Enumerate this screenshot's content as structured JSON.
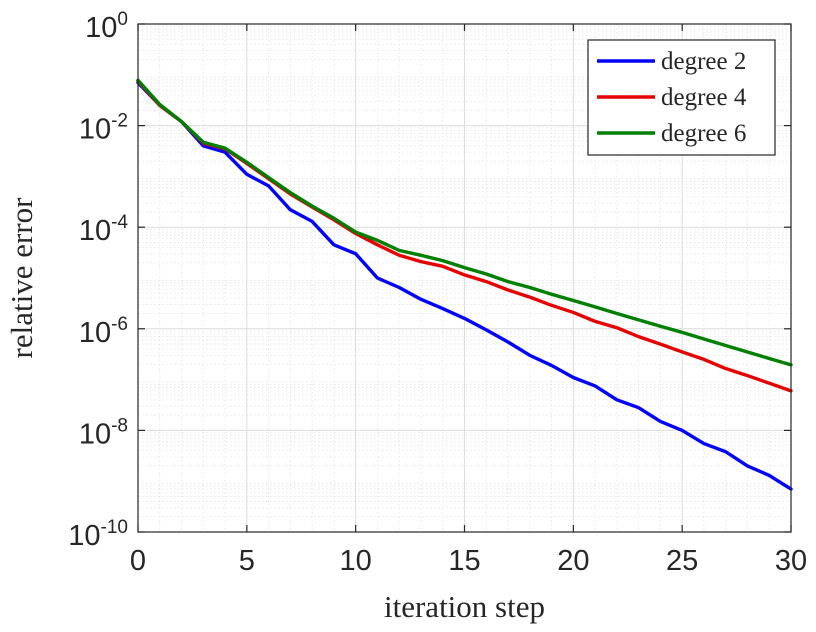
{
  "chart_data": {
    "type": "line",
    "title": "",
    "xlabel": "iteration step",
    "ylabel": "relative error",
    "xscale": "linear",
    "yscale": "log",
    "xlim": [
      0,
      30
    ],
    "ylim": [
      1e-10,
      1
    ],
    "xticks": [
      0,
      5,
      10,
      15,
      20,
      25,
      30
    ],
    "xtick_labels": [
      "0",
      "5",
      "10",
      "15",
      "20",
      "25",
      "30"
    ],
    "yticks": [
      {
        "value": 1e-10,
        "base": "10",
        "exponent": "-10"
      },
      {
        "value": 1e-08,
        "base": "10",
        "exponent": "-8"
      },
      {
        "value": 1e-06,
        "base": "10",
        "exponent": "-6"
      },
      {
        "value": 0.0001,
        "base": "10",
        "exponent": "-4"
      },
      {
        "value": 0.01,
        "base": "10",
        "exponent": "-2"
      },
      {
        "value": 1,
        "base": "10",
        "exponent": "0"
      }
    ],
    "grid": true,
    "legend_position": "top-right",
    "x": [
      0,
      1,
      2,
      3,
      4,
      5,
      6,
      7,
      8,
      9,
      10,
      11,
      12,
      13,
      14,
      15,
      16,
      17,
      18,
      19,
      20,
      21,
      22,
      23,
      24,
      25,
      26,
      27,
      28,
      29,
      30
    ],
    "series": [
      {
        "name": "degree 2",
        "color": "#0000ff",
        "values": [
          0.07,
          0.025,
          0.012,
          0.004,
          0.003,
          0.0011,
          0.00065,
          0.00022,
          0.00013,
          4.5e-05,
          3e-05,
          1e-05,
          6.5e-06,
          3.8e-06,
          2.5e-06,
          1.6e-06,
          9.5e-07,
          5.5e-07,
          3e-07,
          1.9e-07,
          1.1e-07,
          7.5e-08,
          4e-08,
          2.8e-08,
          1.5e-08,
          1e-08,
          5.5e-09,
          3.8e-09,
          2e-09,
          1.3e-09,
          7e-10
        ]
      },
      {
        "name": "degree 4",
        "color": "#e60000",
        "values": [
          0.075,
          0.025,
          0.012,
          0.0045,
          0.0035,
          0.0018,
          0.0009,
          0.00045,
          0.00025,
          0.00014,
          7.5e-05,
          4.5e-05,
          2.8e-05,
          2.1e-05,
          1.7e-05,
          1.15e-05,
          8.5e-06,
          5.8e-06,
          4.2e-06,
          2.9e-06,
          2.1e-06,
          1.4e-06,
          1.05e-06,
          7e-07,
          5e-07,
          3.5e-07,
          2.5e-07,
          1.65e-07,
          1.2e-07,
          8.5e-08,
          6e-08
        ]
      },
      {
        "name": "degree 6",
        "color": "#007f00",
        "values": [
          0.078,
          0.026,
          0.012,
          0.0047,
          0.0036,
          0.0019,
          0.00095,
          0.00048,
          0.00026,
          0.00015,
          8e-05,
          5.5e-05,
          3.5e-05,
          2.8e-05,
          2.2e-05,
          1.6e-05,
          1.2e-05,
          8.5e-06,
          6.5e-06,
          4.8e-06,
          3.6e-06,
          2.7e-06,
          2e-06,
          1.5e-06,
          1.12e-06,
          8.5e-07,
          6.3e-07,
          4.7e-07,
          3.5e-07,
          2.6e-07,
          1.95e-07
        ]
      }
    ]
  }
}
